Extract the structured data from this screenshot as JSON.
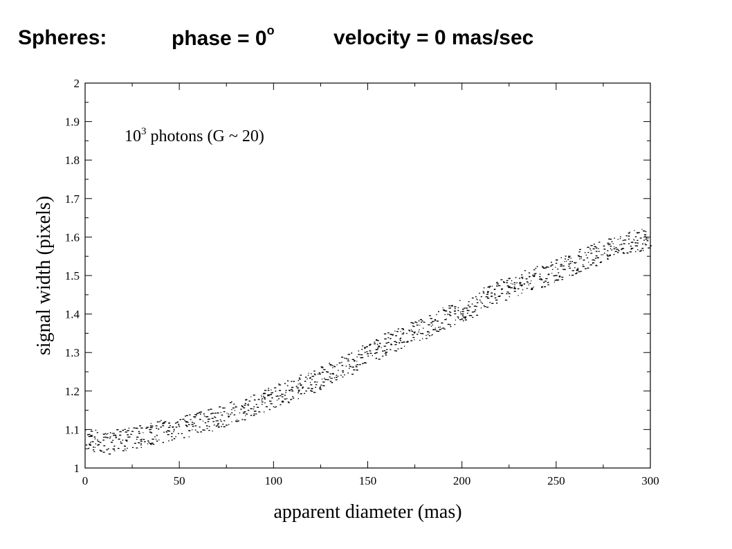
{
  "header": {
    "label": "Spheres:",
    "phase_text": "phase = 0",
    "phase_sup": "o",
    "velocity_text": "velocity = 0 mas/sec"
  },
  "chart_data": {
    "type": "scatter",
    "title": "",
    "xlabel": "apparent diameter  (mas)",
    "ylabel": "signal width  (pixels)",
    "xlim": [
      0,
      300
    ],
    "ylim": [
      1,
      2
    ],
    "xticks": [
      0,
      50,
      100,
      150,
      200,
      250,
      300
    ],
    "yticks": [
      1,
      1.1,
      1.2,
      1.3,
      1.4,
      1.5,
      1.6,
      1.7,
      1.8,
      1.9,
      2
    ],
    "annotation": {
      "base": "10",
      "exponent": "3",
      "text": "photons   (G ~ 20)"
    },
    "grid": false,
    "point_color": "#000000",
    "series": [
      {
        "x": [
          0,
          5,
          10,
          15,
          20,
          25,
          30,
          35,
          40,
          45,
          50,
          55,
          60,
          65,
          70,
          75,
          80,
          85,
          90,
          95,
          100,
          105,
          110,
          115,
          120,
          125,
          130,
          135,
          140,
          145,
          150,
          155,
          160,
          165,
          170,
          175,
          180,
          185,
          190,
          195,
          200,
          205,
          210,
          215,
          220,
          225,
          230,
          235,
          240,
          245,
          250,
          255,
          260,
          265,
          270,
          275,
          280,
          285,
          290,
          295,
          300
        ],
        "y": [
          1.075,
          1.07,
          1.065,
          1.07,
          1.075,
          1.08,
          1.085,
          1.09,
          1.095,
          1.1,
          1.105,
          1.11,
          1.12,
          1.125,
          1.13,
          1.14,
          1.15,
          1.155,
          1.165,
          1.175,
          1.185,
          1.195,
          1.205,
          1.215,
          1.225,
          1.235,
          1.25,
          1.26,
          1.27,
          1.285,
          1.3,
          1.31,
          1.325,
          1.335,
          1.345,
          1.355,
          1.365,
          1.375,
          1.39,
          1.4,
          1.41,
          1.42,
          1.435,
          1.45,
          1.46,
          1.47,
          1.48,
          1.49,
          1.495,
          1.505,
          1.515,
          1.525,
          1.535,
          1.545,
          1.555,
          1.565,
          1.575,
          1.585,
          1.59,
          1.595,
          1.6
        ]
      }
    ]
  }
}
